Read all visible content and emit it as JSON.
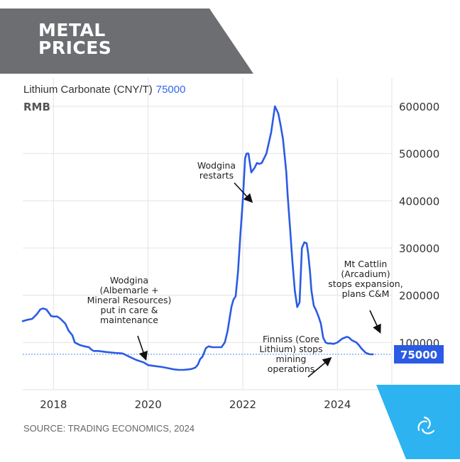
{
  "banner": {
    "line1": "METAL",
    "line2": "PRICES",
    "bg_color": "#6d6e71"
  },
  "source_text": "SOURCE: TRADING ECONOMICS, 2024",
  "accent_color": "#2db3f0",
  "chart_data": {
    "type": "line",
    "title": "Lithium Carbonate (CNY/T)",
    "title_value": "75000",
    "unit_label": "RMB",
    "xlabel": "",
    "ylabel": "",
    "x_ticks": [
      "2018",
      "2020",
      "2022",
      "2024"
    ],
    "y_ticks": [
      "100000",
      "200000",
      "300000",
      "400000",
      "500000",
      "600000"
    ],
    "xlim": [
      2017.35,
      2025.15
    ],
    "ylim": [
      0,
      660000
    ],
    "grid": true,
    "line_color": "#2b5be4",
    "current_value": 75000,
    "current_label": "75000",
    "series": [
      {
        "x": [
          2017.35,
          2017.45,
          2017.55,
          2017.65,
          2017.72,
          2017.78,
          2017.85,
          2017.9,
          2017.95,
          2018.0,
          2018.08,
          2018.15,
          2018.25,
          2018.32,
          2018.4,
          2018.45,
          2018.55,
          2018.65,
          2018.75,
          2018.8,
          2018.85,
          2018.95,
          2019.1,
          2019.3,
          2019.45,
          2019.5,
          2019.6,
          2019.75,
          2019.9,
          2020.0,
          2020.15,
          2020.3,
          2020.45,
          2020.55,
          2020.65,
          2020.75,
          2020.85,
          2020.92,
          2021.0,
          2021.05,
          2021.1,
          2021.15,
          2021.22,
          2021.28,
          2021.35,
          2021.45,
          2021.55,
          2021.62,
          2021.68,
          2021.72,
          2021.76,
          2021.8,
          2021.85,
          2021.9,
          2021.95,
          2022.0,
          2022.05,
          2022.08,
          2022.12,
          2022.18,
          2022.25,
          2022.3,
          2022.35,
          2022.4,
          2022.5,
          2022.6,
          2022.68,
          2022.75,
          2022.8,
          2022.85,
          2022.88,
          2022.92,
          2022.95,
          2023.0,
          2023.05,
          2023.1,
          2023.15,
          2023.2,
          2023.25,
          2023.3,
          2023.35,
          2023.38,
          2023.42,
          2023.45,
          2023.5,
          2023.55,
          2023.6,
          2023.65,
          2023.7,
          2023.75,
          2023.8,
          2023.85,
          2023.92,
          2024.0,
          2024.1,
          2024.2,
          2024.25,
          2024.3,
          2024.4,
          2024.45,
          2024.5,
          2024.55,
          2024.6,
          2024.68,
          2024.75
        ],
        "y": [
          145000,
          148000,
          150000,
          160000,
          170000,
          172000,
          170000,
          163000,
          156000,
          155000,
          155000,
          150000,
          140000,
          125000,
          115000,
          100000,
          95000,
          92000,
          90000,
          85000,
          82000,
          82000,
          80000,
          78000,
          77000,
          75000,
          70000,
          63000,
          58000,
          52000,
          50000,
          48000,
          45000,
          43000,
          42000,
          42000,
          43000,
          44000,
          47000,
          53000,
          65000,
          70000,
          88000,
          92000,
          90000,
          90000,
          90000,
          100000,
          125000,
          150000,
          175000,
          190000,
          198000,
          250000,
          330000,
          400000,
          490000,
          500000,
          500000,
          460000,
          470000,
          480000,
          478000,
          480000,
          500000,
          545000,
          600000,
          585000,
          560000,
          530000,
          500000,
          460000,
          410000,
          340000,
          270000,
          210000,
          175000,
          185000,
          300000,
          312000,
          310000,
          290000,
          250000,
          210000,
          178000,
          168000,
          155000,
          140000,
          110000,
          100000,
          98000,
          98000,
          97000,
          100000,
          108000,
          112000,
          110000,
          105000,
          100000,
          95000,
          88000,
          83000,
          78000,
          75000,
          75000
        ]
      }
    ],
    "annotations": [
      {
        "lines": [
          "Wodgina",
          "(Albemarle +",
          "Mineral Resources)",
          "put in care &",
          "maintenance"
        ]
      },
      {
        "lines": [
          "Wodgina",
          "restarts"
        ]
      },
      {
        "lines": [
          "Finniss (Core",
          "Lithium) stops",
          "mining",
          "operations"
        ]
      },
      {
        "lines": [
          "Mt Cattlin",
          "(Arcadium)",
          "stops expansion,",
          "plans C&M"
        ]
      }
    ]
  }
}
